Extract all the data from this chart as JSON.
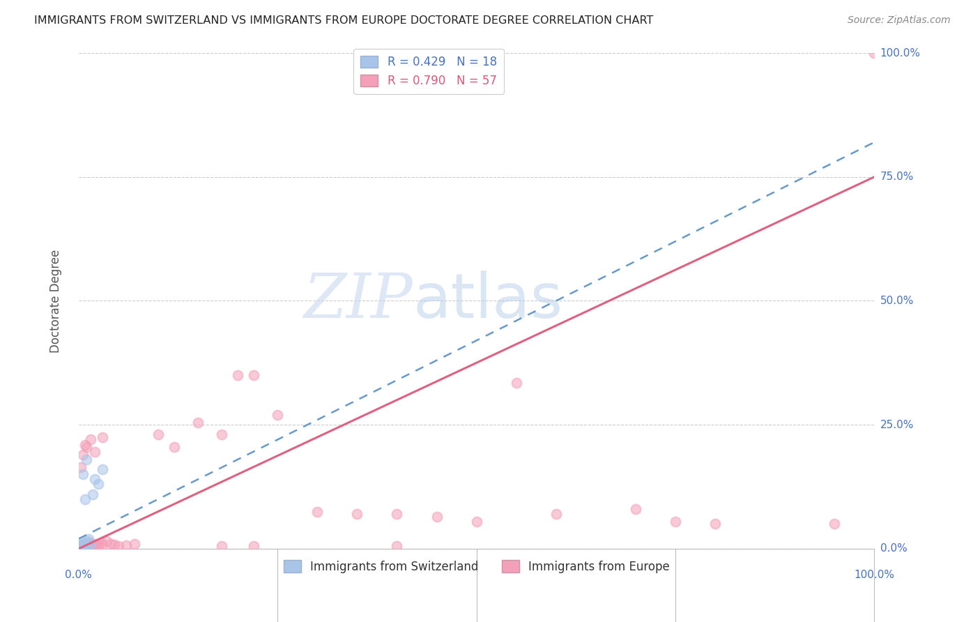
{
  "title": "IMMIGRANTS FROM SWITZERLAND VS IMMIGRANTS FROM EUROPE DOCTORATE DEGREE CORRELATION CHART",
  "source": "Source: ZipAtlas.com",
  "ylabel": "Doctorate Degree",
  "ytick_labels": [
    "0.0%",
    "25.0%",
    "50.0%",
    "75.0%",
    "100.0%"
  ],
  "ytick_values": [
    0,
    25,
    50,
    75,
    100
  ],
  "xtick_labels": [
    "0.0%",
    "100.0%"
  ],
  "xtick_values": [
    0,
    100
  ],
  "xlim": [
    0,
    100
  ],
  "ylim": [
    0,
    100
  ],
  "legend_entries": [
    {
      "label": "R = 0.429   N = 18",
      "color": "#a8c4e8"
    },
    {
      "label": "R = 0.790   N = 57",
      "color": "#f4a0b8"
    }
  ],
  "legend_bottom": [
    {
      "label": "Immigrants from Switzerland",
      "color": "#a8c4e8"
    },
    {
      "label": "Immigrants from Europe",
      "color": "#f4a0b8"
    }
  ],
  "switzerland_points": [
    [
      0.3,
      0.5
    ],
    [
      0.4,
      0.8
    ],
    [
      0.5,
      1.2
    ],
    [
      0.6,
      0.3
    ],
    [
      0.7,
      0.5
    ],
    [
      0.8,
      1.0
    ],
    [
      0.9,
      0.4
    ],
    [
      1.0,
      0.6
    ],
    [
      1.1,
      1.5
    ],
    [
      1.2,
      2.0
    ],
    [
      1.5,
      0.8
    ],
    [
      1.8,
      11.0
    ],
    [
      2.0,
      14.0
    ],
    [
      2.5,
      13.0
    ],
    [
      3.0,
      16.0
    ],
    [
      0.5,
      15.0
    ],
    [
      1.0,
      18.0
    ],
    [
      0.8,
      10.0
    ]
  ],
  "europe_points": [
    [
      0.2,
      0.3
    ],
    [
      0.3,
      0.5
    ],
    [
      0.4,
      0.8
    ],
    [
      0.5,
      0.4
    ],
    [
      0.6,
      0.7
    ],
    [
      0.7,
      0.5
    ],
    [
      0.8,
      0.6
    ],
    [
      0.9,
      0.3
    ],
    [
      1.0,
      1.0
    ],
    [
      1.1,
      0.5
    ],
    [
      1.2,
      0.8
    ],
    [
      1.3,
      0.4
    ],
    [
      1.4,
      1.2
    ],
    [
      1.5,
      0.6
    ],
    [
      1.6,
      0.9
    ],
    [
      1.7,
      0.5
    ],
    [
      1.8,
      0.7
    ],
    [
      2.0,
      0.8
    ],
    [
      2.2,
      1.0
    ],
    [
      2.5,
      0.5
    ],
    [
      2.8,
      1.2
    ],
    [
      3.0,
      0.8
    ],
    [
      3.5,
      1.5
    ],
    [
      4.0,
      1.0
    ],
    [
      4.5,
      0.8
    ],
    [
      5.0,
      0.5
    ],
    [
      6.0,
      0.7
    ],
    [
      7.0,
      1.0
    ],
    [
      0.3,
      16.5
    ],
    [
      0.5,
      19.0
    ],
    [
      0.8,
      21.0
    ],
    [
      1.0,
      20.5
    ],
    [
      1.5,
      22.0
    ],
    [
      2.0,
      19.5
    ],
    [
      3.0,
      22.5
    ],
    [
      10.0,
      23.0
    ],
    [
      12.0,
      20.5
    ],
    [
      15.0,
      25.5
    ],
    [
      18.0,
      23.0
    ],
    [
      20.0,
      35.0
    ],
    [
      22.0,
      35.0
    ],
    [
      25.0,
      27.0
    ],
    [
      30.0,
      7.5
    ],
    [
      35.0,
      7.0
    ],
    [
      40.0,
      7.0
    ],
    [
      45.0,
      6.5
    ],
    [
      50.0,
      5.5
    ],
    [
      55.0,
      33.5
    ],
    [
      60.0,
      7.0
    ],
    [
      70.0,
      8.0
    ],
    [
      75.0,
      5.5
    ],
    [
      80.0,
      5.0
    ],
    [
      95.0,
      5.0
    ],
    [
      100.0,
      100.0
    ],
    [
      18.0,
      0.5
    ],
    [
      22.0,
      0.5
    ],
    [
      40.0,
      0.5
    ]
  ],
  "switzerland_line_x": [
    0,
    100
  ],
  "switzerland_line_y": [
    2.0,
    82.0
  ],
  "switzerland_line_color": "#6699cc",
  "switzerland_line_style": "--",
  "europe_line_x": [
    0,
    100
  ],
  "europe_line_y": [
    0.0,
    75.0
  ],
  "europe_line_color": "#e06080",
  "europe_line_style": "-",
  "watermark_zip": "ZIP",
  "watermark_atlas": "atlas",
  "background_color": "#ffffff",
  "grid_color": "#cccccc",
  "grid_style": "--",
  "scatter_alpha": 0.55,
  "scatter_size": 100,
  "scatter_edgewidth": 1.5,
  "title_color": "#222222",
  "title_fontsize": 11.5,
  "source_color": "#888888",
  "source_fontsize": 10,
  "tick_color": "#4472c4",
  "tick_fontsize": 11,
  "ylabel_color": "#555555",
  "ylabel_fontsize": 12
}
